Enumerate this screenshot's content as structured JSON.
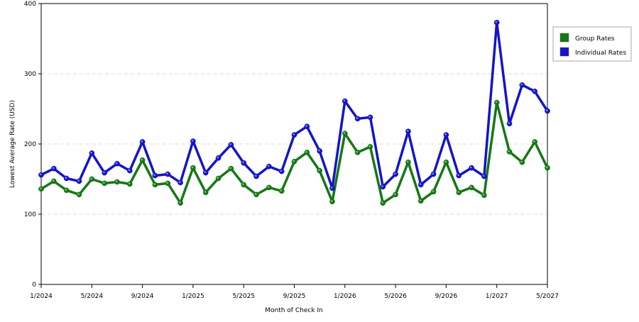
{
  "chart_data": {
    "type": "line",
    "title": "",
    "xlabel": "Month of Check In",
    "ylabel": "Lowest Average Rate (USD)",
    "ylim": [
      0,
      400
    ],
    "yticks": [
      "0",
      "100",
      "200",
      "300",
      "400"
    ],
    "xticks": [
      "1/2024",
      "5/2024",
      "9/2024",
      "1/2025",
      "5/2025",
      "9/2025",
      "1/2026",
      "5/2026",
      "9/2026",
      "1/2027",
      "5/2027"
    ],
    "xtick_index": [
      0,
      4,
      8,
      12,
      16,
      20,
      24,
      28,
      32,
      36,
      40
    ],
    "x": [
      "1/2024",
      "2/2024",
      "3/2024",
      "4/2024",
      "5/2024",
      "6/2024",
      "7/2024",
      "8/2024",
      "9/2024",
      "10/2024",
      "11/2024",
      "12/2024",
      "1/2025",
      "2/2025",
      "3/2025",
      "4/2025",
      "5/2025",
      "6/2025",
      "7/2025",
      "8/2025",
      "9/2025",
      "10/2025",
      "11/2025",
      "12/2025",
      "1/2026",
      "2/2026",
      "3/2026",
      "4/2026",
      "5/2026",
      "6/2026",
      "7/2026",
      "8/2026",
      "9/2026",
      "10/2026",
      "11/2026",
      "12/2026",
      "1/2027",
      "2/2027",
      "3/2027",
      "4/2027",
      "5/2027"
    ],
    "grid": "horizontal dashed",
    "legend_position": "top-right",
    "series": [
      {
        "name": "Group Rates",
        "color": "#147814",
        "values": [
          136,
          147,
          134,
          128,
          150,
          144,
          146,
          143,
          177,
          142,
          144,
          116,
          166,
          131,
          151,
          165,
          142,
          128,
          138,
          133,
          175,
          188,
          162,
          118,
          215,
          188,
          196,
          116,
          128,
          174,
          119,
          132,
          174,
          131,
          138,
          127,
          259,
          189,
          174,
          203,
          166
        ]
      },
      {
        "name": "Individual Rates",
        "color": "#1414c8",
        "values": [
          156,
          165,
          151,
          147,
          187,
          159,
          172,
          162,
          203,
          155,
          157,
          145,
          204,
          159,
          180,
          199,
          173,
          154,
          168,
          161,
          213,
          225,
          190,
          137,
          261,
          236,
          238,
          139,
          157,
          218,
          142,
          157,
          213,
          155,
          166,
          154,
          373,
          229,
          284,
          275,
          247
        ]
      }
    ]
  }
}
